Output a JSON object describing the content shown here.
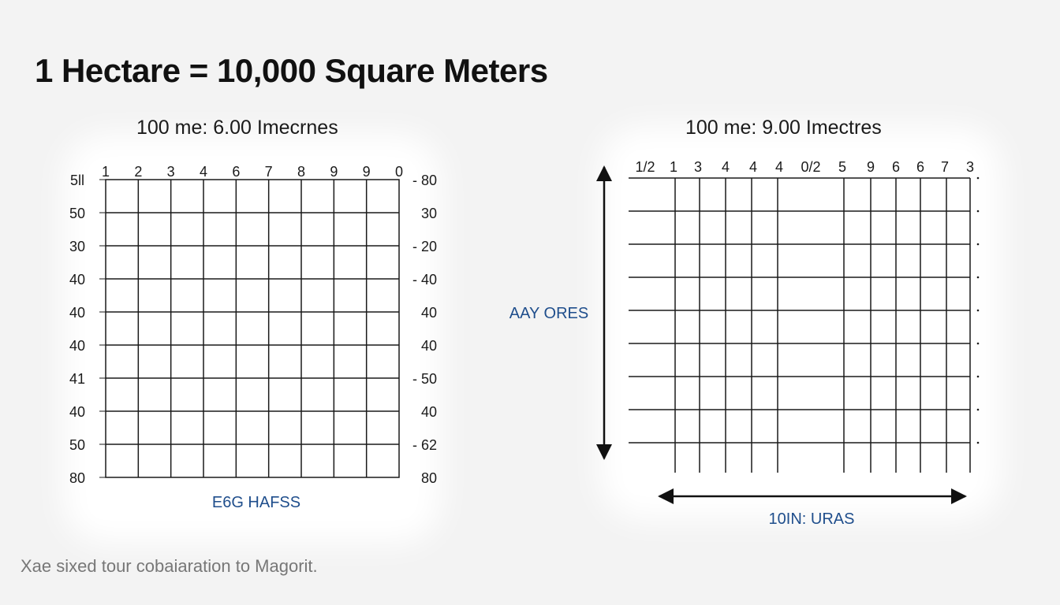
{
  "title": "1 Hectare = 10,000 Square Meters",
  "footnote": "Xae sixed tour cobaiaration to Magorit.",
  "colors": {
    "grid": "#1a1a1a",
    "caption": "#1f4e8c",
    "background": "#f3f3f3"
  },
  "left_grid": {
    "subtitle": "100 me:  6.00 Imecrnes",
    "top_labels": [
      "1",
      "2",
      "3",
      "4",
      "6",
      "7",
      "8",
      "9",
      "9",
      "0"
    ],
    "left_labels": [
      "5ll",
      "50",
      "30",
      "40",
      "40",
      "40",
      "41",
      "40",
      "50",
      "80"
    ],
    "right_labels": [
      "- 80",
      "30",
      "- 20",
      "- 40",
      "40",
      "40",
      "- 50",
      "40",
      "- 62",
      "80"
    ],
    "bottom_caption": "E6G HAFSS"
  },
  "right_grid": {
    "subtitle": "100 me:  9.00 Imectres",
    "top_labels": [
      "1/2",
      "1",
      "3",
      "4",
      "4",
      "4",
      "0/2",
      "5",
      "9",
      "6",
      "6",
      "7",
      "3"
    ],
    "side_caption": "AAY ORES",
    "bottom_caption": "10IN: URAS"
  }
}
